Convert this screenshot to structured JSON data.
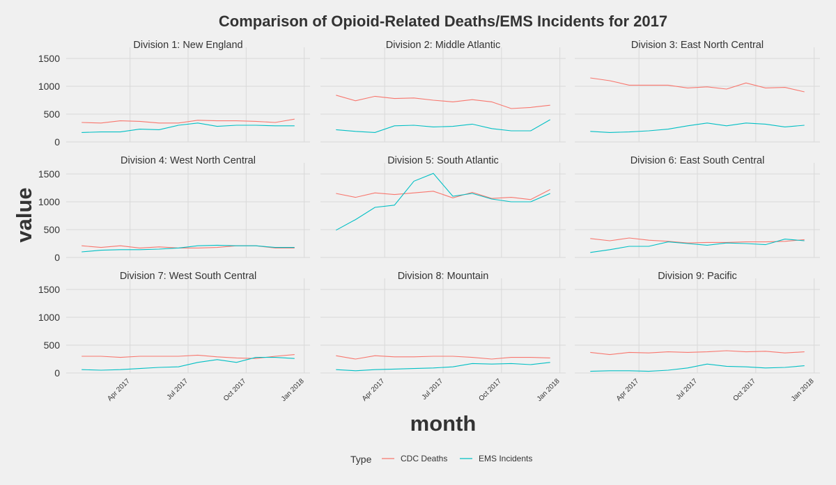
{
  "chart_data": {
    "type": "line",
    "title": "Comparison of Opioid-Related Deaths/EMS Incidents for 2017",
    "xlabel": "month",
    "ylabel": "value",
    "ylim": [
      0,
      1600
    ],
    "yticks": [
      0,
      500,
      1000,
      1500
    ],
    "x": [
      "Jan 2017",
      "Feb 2017",
      "Mar 2017",
      "Apr 2017",
      "May 2017",
      "Jun 2017",
      "Jul 2017",
      "Aug 2017",
      "Sep 2017",
      "Oct 2017",
      "Nov 2017",
      "Dec 2017",
      "Jan 2018"
    ],
    "xticks": [
      {
        "label": "Apr 2017",
        "index": 3
      },
      {
        "label": "Jul 2017",
        "index": 6
      },
      {
        "label": "Oct 2017",
        "index": 9
      },
      {
        "label": "Jan 2018",
        "index": 12
      }
    ],
    "grid": true,
    "legend": {
      "title": "Type",
      "position": "bottom",
      "entries": [
        {
          "name": "CDC Deaths",
          "color": "#F8766D"
        },
        {
          "name": "EMS Incidents",
          "color": "#00BFC4"
        }
      ]
    },
    "panels": [
      {
        "title": "Division 1: New England",
        "series": [
          {
            "name": "CDC Deaths",
            "values": [
              350,
              340,
              380,
              370,
              340,
              340,
              390,
              380,
              380,
              370,
              350,
              410
            ]
          },
          {
            "name": "EMS Incidents",
            "values": [
              170,
              180,
              180,
              230,
              220,
              300,
              340,
              280,
              300,
              300,
              290,
              290
            ]
          }
        ]
      },
      {
        "title": "Division 2: Middle Atlantic",
        "series": [
          {
            "name": "CDC Deaths",
            "values": [
              840,
              740,
              820,
              780,
              790,
              750,
              720,
              760,
              720,
              600,
              620,
              660
            ]
          },
          {
            "name": "EMS Incidents",
            "values": [
              220,
              190,
              170,
              290,
              300,
              270,
              280,
              320,
              240,
              200,
              200,
              400
            ]
          }
        ]
      },
      {
        "title": "Division 3: East North Central",
        "series": [
          {
            "name": "CDC Deaths",
            "values": [
              1150,
              1100,
              1020,
              1020,
              1020,
              970,
              990,
              950,
              1060,
              970,
              980,
              900
            ]
          },
          {
            "name": "EMS Incidents",
            "values": [
              190,
              170,
              180,
              200,
              230,
              290,
              340,
              290,
              340,
              320,
              270,
              300
            ]
          }
        ]
      },
      {
        "title": "Division 4: West North Central",
        "series": [
          {
            "name": "CDC Deaths",
            "values": [
              210,
              180,
              210,
              170,
              190,
              170,
              170,
              180,
              210,
              210,
              170,
              170
            ]
          },
          {
            "name": "EMS Incidents",
            "values": [
              100,
              130,
              140,
              140,
              150,
              170,
              210,
              220,
              210,
              210,
              180,
              180
            ]
          }
        ]
      },
      {
        "title": "Division 5: South Atlantic",
        "series": [
          {
            "name": "CDC Deaths",
            "values": [
              1150,
              1080,
              1160,
              1130,
              1160,
              1190,
              1070,
              1170,
              1060,
              1080,
              1040,
              1220
            ]
          },
          {
            "name": "EMS Incidents",
            "values": [
              490,
              680,
              900,
              940,
              1370,
              1510,
              1100,
              1150,
              1050,
              1000,
              1000,
              1150
            ]
          }
        ]
      },
      {
        "title": "Division 6: East South Central",
        "series": [
          {
            "name": "CDC Deaths",
            "values": [
              340,
              300,
              350,
              310,
              290,
              260,
              270,
              270,
              280,
              280,
              290,
              320
            ]
          },
          {
            "name": "EMS Incidents",
            "values": [
              90,
              140,
              200,
              200,
              280,
              250,
              220,
              260,
              250,
              230,
              330,
              300
            ]
          }
        ]
      },
      {
        "title": "Division 7: West South Central",
        "series": [
          {
            "name": "CDC Deaths",
            "values": [
              300,
              300,
              280,
              300,
              300,
              300,
              320,
              290,
              270,
              260,
              300,
              330
            ]
          },
          {
            "name": "EMS Incidents",
            "values": [
              60,
              50,
              60,
              80,
              100,
              110,
              190,
              240,
              190,
              280,
              280,
              260
            ]
          }
        ]
      },
      {
        "title": "Division 8: Mountain",
        "series": [
          {
            "name": "CDC Deaths",
            "values": [
              310,
              250,
              310,
              290,
              290,
              300,
              300,
              280,
              250,
              280,
              280,
              270
            ]
          },
          {
            "name": "EMS Incidents",
            "values": [
              60,
              40,
              60,
              70,
              80,
              90,
              110,
              170,
              160,
              170,
              150,
              190
            ]
          }
        ]
      },
      {
        "title": "Division 9: Pacific",
        "series": [
          {
            "name": "CDC Deaths",
            "values": [
              370,
              330,
              370,
              360,
              380,
              370,
              380,
              400,
              380,
              390,
              360,
              380
            ]
          },
          {
            "name": "EMS Incidents",
            "values": [
              30,
              40,
              40,
              30,
              50,
              90,
              160,
              120,
              110,
              90,
              100,
              130
            ]
          }
        ]
      }
    ]
  }
}
